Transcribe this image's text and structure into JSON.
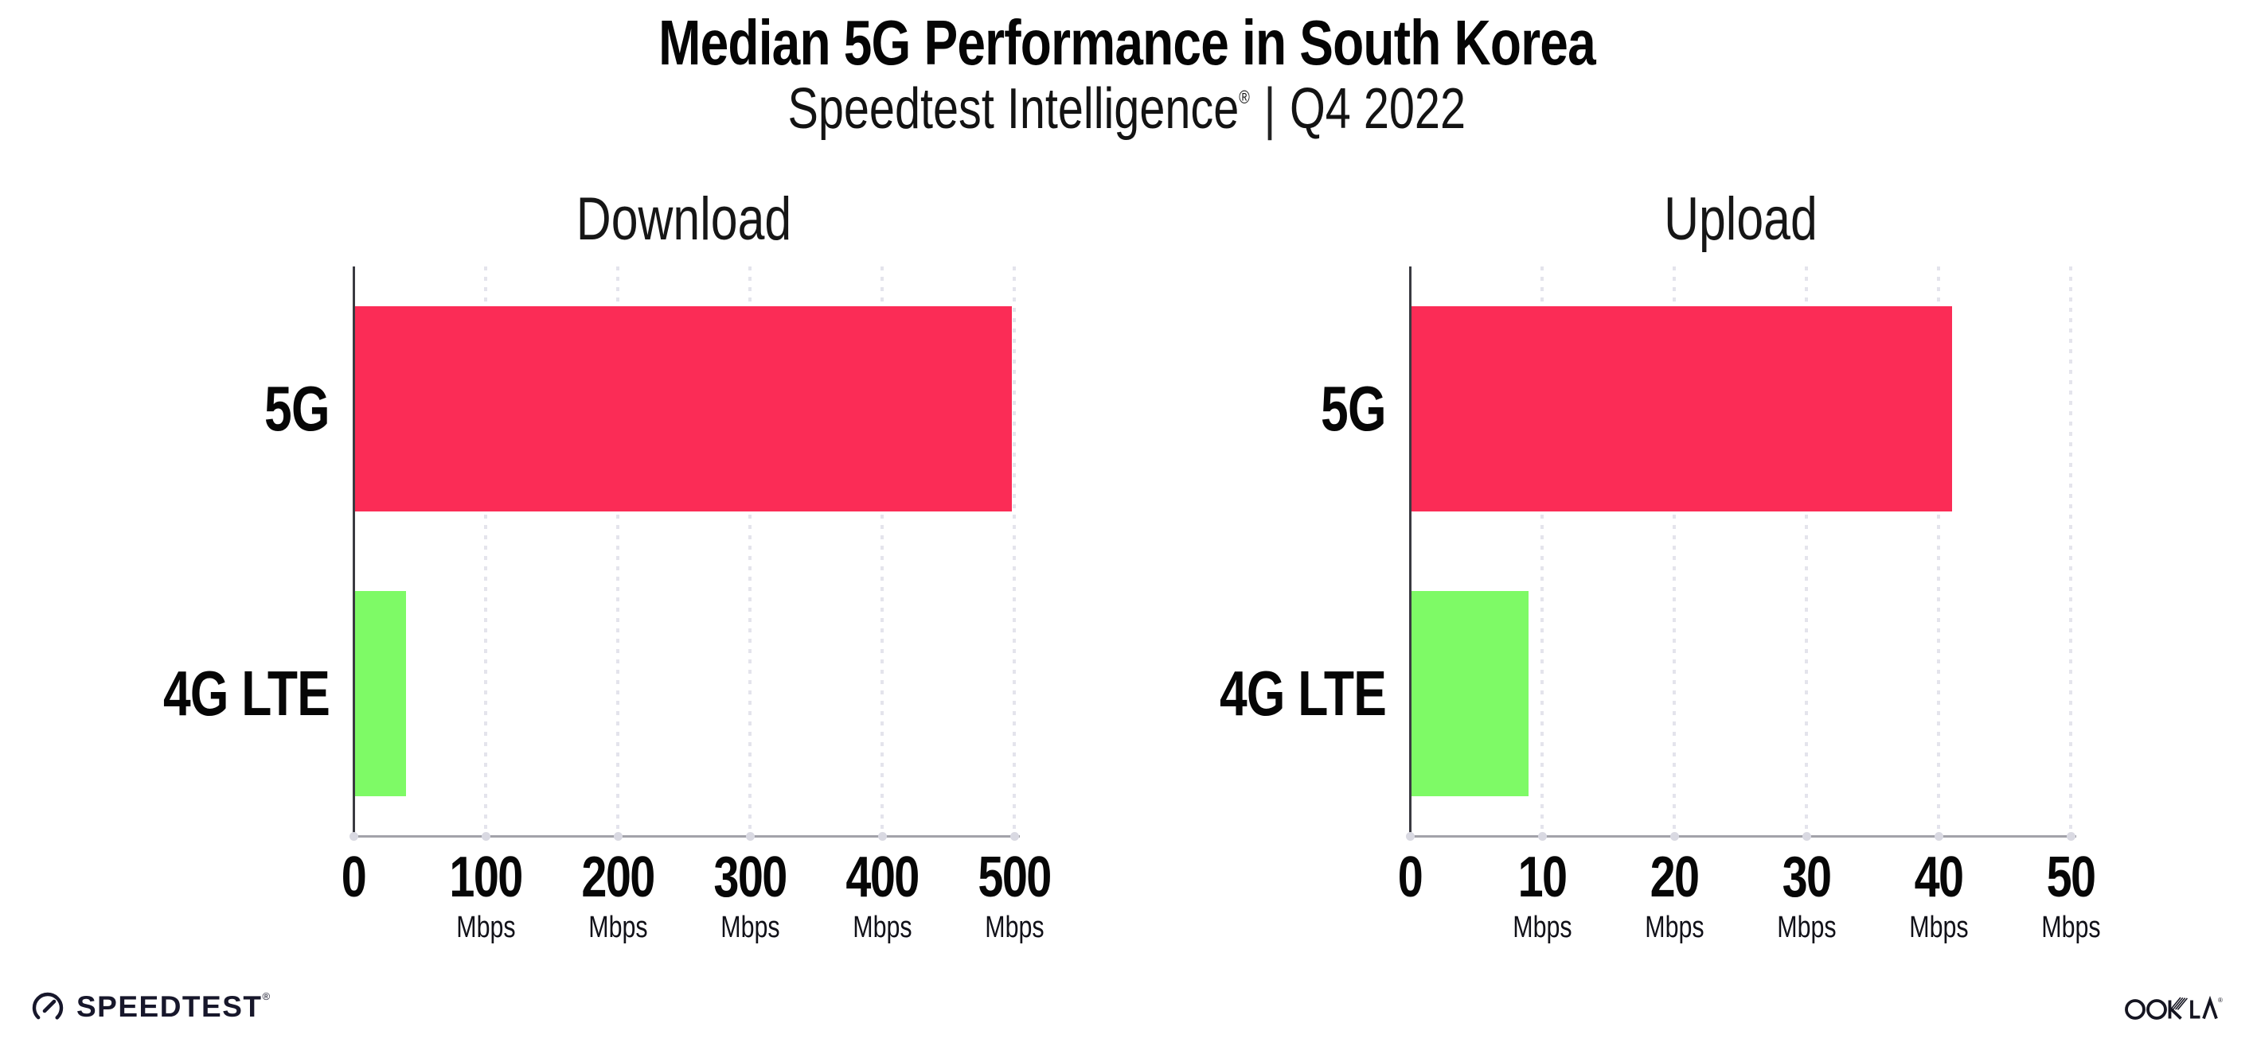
{
  "page_title": "Median 5G Performance in South Korea",
  "subtitle": {
    "brand": "Speedtest Intelligence",
    "registered_mark": "®",
    "separator": "|",
    "period": "Q4 2022"
  },
  "footer": {
    "speedtest_wordmark": "SPEEDTEST",
    "speedtest_mark": "®",
    "ookla_wordmark": "OOKLA",
    "ookla_mark": "®"
  },
  "colors": {
    "bar_5g": "#FB2C56",
    "bar_4g_lte": "#7EFA66",
    "gridline": "#E4E4EC",
    "y_axis": "#3A3A41",
    "x_axis": "#A2A2AA",
    "text": "#0B0B0B"
  },
  "chart_data": [
    {
      "type": "bar",
      "orientation": "horizontal",
      "title": "Download",
      "categories": [
        "5G",
        "4G LTE"
      ],
      "values": [
        498,
        40
      ],
      "unit": "Mbps",
      "xlim": [
        0,
        500
      ],
      "xticks": [
        0,
        100,
        200,
        300,
        400,
        500
      ],
      "bar_colors": [
        "#FB2C56",
        "#7EFA66"
      ],
      "grid": "vertical-dotted",
      "unit_shown_for_zero_tick": false
    },
    {
      "type": "bar",
      "orientation": "horizontal",
      "title": "Upload",
      "categories": [
        "5G",
        "4G LTE"
      ],
      "values": [
        41,
        9
      ],
      "unit": "Mbps",
      "xlim": [
        0,
        50
      ],
      "xticks": [
        0,
        10,
        20,
        30,
        40,
        50
      ],
      "bar_colors": [
        "#FB2C56",
        "#7EFA66"
      ],
      "grid": "vertical-dotted",
      "unit_shown_for_zero_tick": false
    }
  ]
}
